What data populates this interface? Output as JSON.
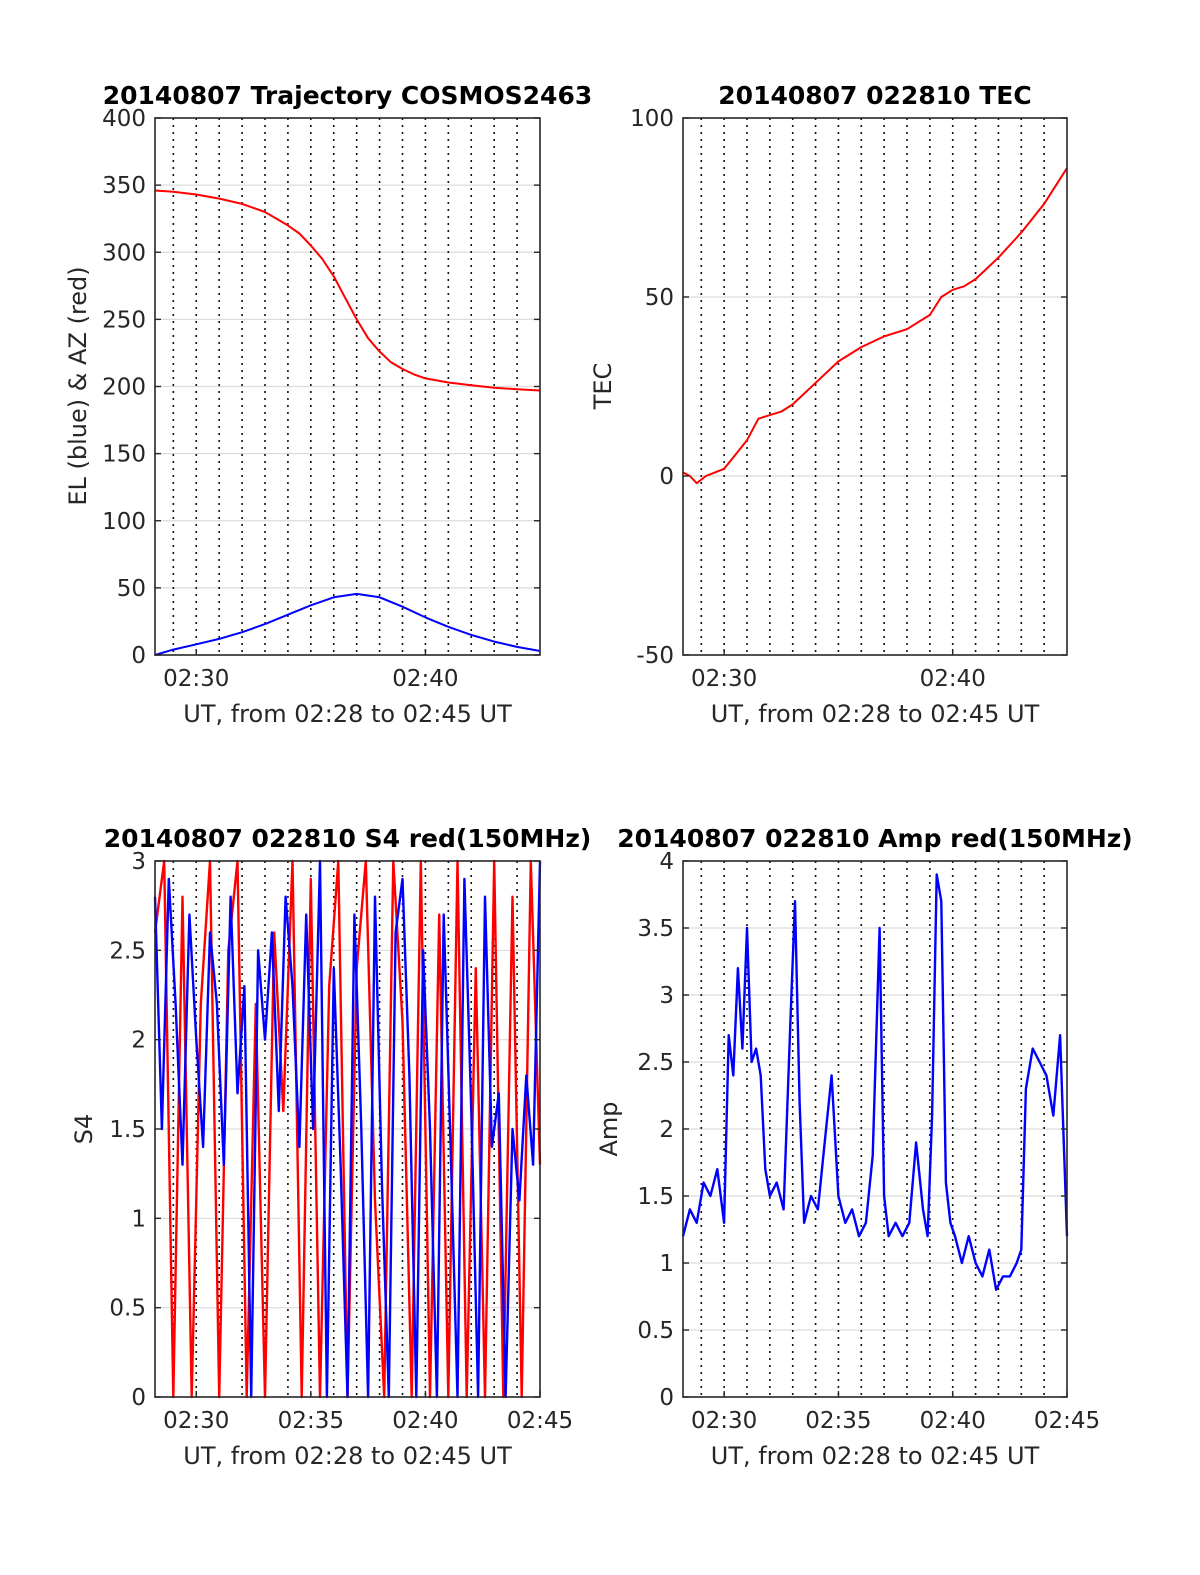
{
  "chart_data": [
    {
      "type": "line",
      "title": "20140807 Trajectory COSMOS2463",
      "xlabel": "UT, from 02:28 to 02:45 UT",
      "ylabel": "EL (blue) & AZ (red)",
      "xlim": [
        28.2,
        45
      ],
      "ylim": [
        0,
        400
      ],
      "xticks": [
        30,
        40
      ],
      "xtick_labels": [
        "02:30",
        "02:40"
      ],
      "yticks": [
        0,
        50,
        100,
        150,
        200,
        250,
        300,
        350,
        400
      ],
      "ytick_labels": [
        "0",
        "50",
        "100",
        "150",
        "200",
        "250",
        "300",
        "350",
        "400"
      ],
      "grid_v_minutes": [
        29,
        30,
        31,
        32,
        33,
        34,
        35,
        36,
        37,
        38,
        39,
        40,
        41,
        42,
        43,
        44
      ],
      "series": [
        {
          "color": "#ff0000",
          "x": [
            28.2,
            29,
            30,
            31,
            32,
            33,
            34,
            34.5,
            35,
            35.5,
            36,
            36.5,
            37,
            37.5,
            38,
            38.5,
            39,
            39.5,
            40,
            41,
            42,
            43,
            44,
            45
          ],
          "y": [
            346,
            345,
            343,
            340,
            336,
            330,
            320,
            314,
            305,
            295,
            282,
            266,
            250,
            236,
            226,
            218,
            213,
            209,
            206,
            203,
            201,
            199,
            198,
            197
          ]
        },
        {
          "color": "#0000ff",
          "x": [
            28.2,
            29,
            30,
            31,
            32,
            33,
            34,
            35,
            36,
            37,
            38,
            39,
            40,
            41,
            42,
            43,
            44,
            45
          ],
          "y": [
            0,
            4,
            8,
            12,
            17,
            23,
            30,
            37,
            43,
            45.5,
            43,
            36,
            28,
            21,
            15,
            10,
            6,
            3
          ]
        }
      ]
    },
    {
      "type": "line",
      "title": "20140807 022810 TEC",
      "xlabel": "UT, from 02:28 to 02:45 UT",
      "ylabel": "TEC",
      "xlim": [
        28.2,
        45
      ],
      "ylim": [
        -50,
        100
      ],
      "xticks": [
        30,
        40
      ],
      "xtick_labels": [
        "02:30",
        "02:40"
      ],
      "yticks": [
        -50,
        0,
        50,
        100
      ],
      "ytick_labels": [
        "-50",
        "0",
        "50",
        "100"
      ],
      "grid_v_minutes": [
        29,
        30,
        31,
        32,
        33,
        34,
        35,
        36,
        37,
        38,
        39,
        40,
        41,
        42,
        43,
        44
      ],
      "series": [
        {
          "color": "#ff0000",
          "x": [
            28.2,
            28.5,
            28.8,
            29.2,
            29.6,
            30,
            30.5,
            31,
            31.5,
            32,
            32.5,
            33,
            34,
            35,
            36,
            37,
            38,
            39,
            39.5,
            40,
            40.5,
            41,
            42,
            43,
            44,
            45
          ],
          "y": [
            1,
            0,
            -2,
            0,
            1,
            2,
            6,
            10,
            16,
            17,
            18,
            20,
            26,
            32,
            36,
            39,
            41,
            45,
            50,
            52,
            53,
            55,
            61,
            68,
            76,
            86
          ]
        }
      ]
    },
    {
      "type": "line",
      "title": "20140807 022810 S4 red(150MHz)",
      "xlabel": "UT, from 02:28 to 02:45 UT",
      "ylabel": "S4",
      "xlim": [
        28.2,
        45
      ],
      "ylim": [
        0,
        3
      ],
      "xticks": [
        30,
        35,
        40,
        45
      ],
      "xtick_labels": [
        "02:30",
        "02:35",
        "02:40",
        "02:45"
      ],
      "yticks": [
        0,
        0.5,
        1,
        1.5,
        2,
        2.5,
        3
      ],
      "ytick_labels": [
        "0",
        "0.5",
        "1",
        "1.5",
        "2",
        "2.5",
        "3"
      ],
      "grid_v_minutes": [
        29,
        30,
        31,
        32,
        33,
        34,
        35,
        36,
        37,
        38,
        39,
        40,
        41,
        42,
        43,
        44
      ],
      "series": [
        {
          "color": "#ff0000",
          "x": [
            28.2,
            28.6,
            29.0,
            29.4,
            29.8,
            30.2,
            30.6,
            31.0,
            31.4,
            31.8,
            32.2,
            32.6,
            33.0,
            33.4,
            33.8,
            34.2,
            34.6,
            35.0,
            35.4,
            35.8,
            36.2,
            36.6,
            37.0,
            37.4,
            37.8,
            38.2,
            38.6,
            39.0,
            39.4,
            39.8,
            40.2,
            40.6,
            41.0,
            41.4,
            41.8,
            42.2,
            42.6,
            43.0,
            43.4,
            43.8,
            44.2,
            44.6,
            45.0
          ],
          "y": [
            2.6,
            3.0,
            0.0,
            2.8,
            0.0,
            2.2,
            3.0,
            0.0,
            2.5,
            3.0,
            0.0,
            2.2,
            0.0,
            2.6,
            1.6,
            3.0,
            0.0,
            2.9,
            0.0,
            2.3,
            3.0,
            0.0,
            2.4,
            3.0,
            1.1,
            0.0,
            3.0,
            2.1,
            0.0,
            3.0,
            0.0,
            2.7,
            0.0,
            3.0,
            0.0,
            2.4,
            0.0,
            3.0,
            0.0,
            2.8,
            0.0,
            3.0,
            1.3
          ]
        },
        {
          "color": "#0000ff",
          "x": [
            28.2,
            28.5,
            28.8,
            29.1,
            29.4,
            29.7,
            30.0,
            30.3,
            30.6,
            30.9,
            31.2,
            31.5,
            31.8,
            32.1,
            32.4,
            32.7,
            33.0,
            33.3,
            33.6,
            33.9,
            34.2,
            34.5,
            34.8,
            35.1,
            35.4,
            35.7,
            36.0,
            36.3,
            36.6,
            36.9,
            37.2,
            37.5,
            37.8,
            38.1,
            38.4,
            38.7,
            39.0,
            39.3,
            39.6,
            39.9,
            40.2,
            40.5,
            40.8,
            41.1,
            41.4,
            41.7,
            42.0,
            42.3,
            42.6,
            42.9,
            43.2,
            43.5,
            43.8,
            44.1,
            44.4,
            44.7,
            45.0
          ],
          "y": [
            2.8,
            1.5,
            2.9,
            2.2,
            1.3,
            2.7,
            2.0,
            1.4,
            2.6,
            2.2,
            1.3,
            2.8,
            1.7,
            2.3,
            0.0,
            2.5,
            2.0,
            2.6,
            1.6,
            2.8,
            2.3,
            1.4,
            2.7,
            1.5,
            3.0,
            0.0,
            2.4,
            1.3,
            0.0,
            2.7,
            1.5,
            0.0,
            2.8,
            1.2,
            0.0,
            2.6,
            2.9,
            1.8,
            0.0,
            2.5,
            1.5,
            0.0,
            2.7,
            1.4,
            0.0,
            2.9,
            1.6,
            0.0,
            2.8,
            1.4,
            1.7,
            0.0,
            1.5,
            1.1,
            1.8,
            1.3,
            3.0
          ]
        }
      ]
    },
    {
      "type": "line",
      "title": "20140807 022810 Amp red(150MHz)",
      "xlabel": "UT, from 02:28 to 02:45 UT",
      "ylabel": "Amp",
      "xlim": [
        28.2,
        45
      ],
      "ylim": [
        0,
        4
      ],
      "xticks": [
        30,
        35,
        40,
        45
      ],
      "xtick_labels": [
        "02:30",
        "02:35",
        "02:40",
        "02:45"
      ],
      "yticks": [
        0,
        0.5,
        1,
        1.5,
        2,
        2.5,
        3,
        3.5,
        4
      ],
      "ytick_labels": [
        "0",
        "0.5",
        "1",
        "1.5",
        "2",
        "2.5",
        "3",
        "3.5",
        "4"
      ],
      "grid_v_minutes": [
        29,
        30,
        31,
        32,
        33,
        34,
        35,
        36,
        37,
        38,
        39,
        40,
        41,
        42,
        43,
        44
      ],
      "series": [
        {
          "color": "#0000ff",
          "x": [
            28.2,
            28.5,
            28.8,
            29.1,
            29.4,
            29.7,
            30.0,
            30.2,
            30.4,
            30.6,
            30.8,
            31.0,
            31.2,
            31.4,
            31.6,
            31.8,
            32.0,
            32.3,
            32.6,
            32.9,
            33.1,
            33.3,
            33.5,
            33.8,
            34.1,
            34.4,
            34.7,
            35.0,
            35.3,
            35.6,
            35.9,
            36.2,
            36.5,
            36.8,
            37.0,
            37.2,
            37.5,
            37.8,
            38.1,
            38.4,
            38.7,
            38.9,
            39.1,
            39.3,
            39.5,
            39.7,
            39.9,
            40.1,
            40.4,
            40.7,
            41.0,
            41.3,
            41.6,
            41.9,
            42.2,
            42.5,
            42.8,
            43.0,
            43.2,
            43.5,
            43.8,
            44.1,
            44.4,
            44.7,
            45.0
          ],
          "y": [
            1.2,
            1.4,
            1.3,
            1.6,
            1.5,
            1.7,
            1.3,
            2.7,
            2.4,
            3.2,
            2.6,
            3.5,
            2.5,
            2.6,
            2.4,
            1.7,
            1.5,
            1.6,
            1.4,
            2.8,
            3.7,
            2.2,
            1.3,
            1.5,
            1.4,
            1.9,
            2.4,
            1.5,
            1.3,
            1.4,
            1.2,
            1.3,
            1.8,
            3.5,
            1.5,
            1.2,
            1.3,
            1.2,
            1.3,
            1.9,
            1.4,
            1.2,
            2.1,
            3.9,
            3.7,
            1.6,
            1.3,
            1.2,
            1.0,
            1.2,
            1.0,
            0.9,
            1.1,
            0.8,
            0.9,
            0.9,
            1.0,
            1.1,
            2.3,
            2.6,
            2.5,
            2.4,
            2.1,
            2.7,
            1.2
          ]
        }
      ]
    }
  ]
}
